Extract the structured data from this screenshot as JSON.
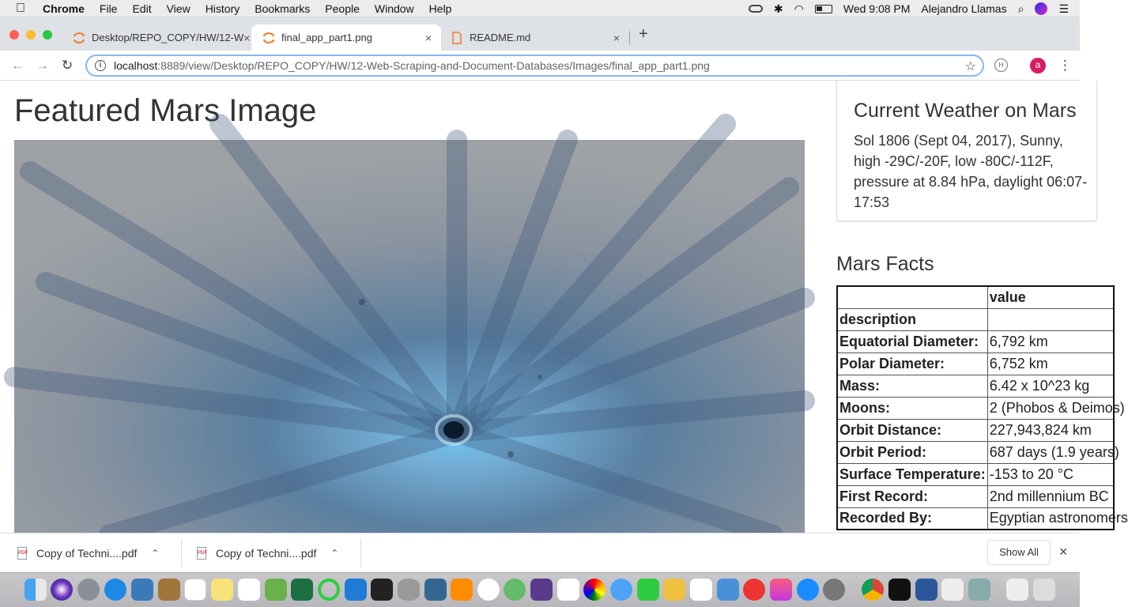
{
  "menubar": {
    "app_name": "Chrome",
    "items": [
      "File",
      "Edit",
      "View",
      "History",
      "Bookmarks",
      "People",
      "Window",
      "Help"
    ],
    "clock": "Wed 9:08 PM",
    "user": "Alejandro Llamas"
  },
  "tabs": [
    {
      "label": "Desktop/REPO_COPY/HW/12-W",
      "close": "×"
    },
    {
      "label": "final_app_part1.png",
      "close": "×"
    },
    {
      "label": "README.md",
      "close": "×"
    }
  ],
  "new_tab": "+",
  "toolbar": {
    "back": "←",
    "forward": "→",
    "reload": "↻",
    "url_host": "localhost",
    "url_path": ":8889/view/Desktop/REPO_COPY/HW/12-Web-Scraping-and-Document-Databases/Images/final_app_part1.png",
    "star": "☆",
    "profile_initial": "a",
    "menu": "⋮"
  },
  "page": {
    "featured_title": "Featured Mars Image",
    "weather_title": "Current Weather on Mars",
    "weather_text": "Sol 1806 (Sept 04, 2017), Sunny, high -29C/-20F, low -80C/-112F, pressure at 8.84 hPa, daylight 06:07-17:53",
    "facts_title": "Mars Facts",
    "facts_header": [
      "",
      "value"
    ],
    "facts_index_label": "description",
    "facts": [
      {
        "k": "Equatorial Diameter:",
        "v": "6,792 km"
      },
      {
        "k": "Polar Diameter:",
        "v": "6,752 km"
      },
      {
        "k": "Mass:",
        "v": "6.42 x 10^23 kg"
      },
      {
        "k": "Moons:",
        "v": "2 (Phobos & Deimos)"
      },
      {
        "k": "Orbit Distance:",
        "v": "227,943,824 km"
      },
      {
        "k": "Orbit Period:",
        "v": "687 days (1.9 years)"
      },
      {
        "k": "Surface Temperature:",
        "v": "-153 to 20 °C"
      },
      {
        "k": "First Record:",
        "v": "2nd millennium BC"
      },
      {
        "k": "Recorded By:",
        "v": "Egyptian astronomers"
      }
    ]
  },
  "downloads": [
    {
      "name": "Copy of Techni....pdf"
    },
    {
      "name": "Copy of Techni....pdf"
    }
  ],
  "show_all": "Show All",
  "shelf_close": "×",
  "colors": {
    "tab_bg": "#dee1e6",
    "focus": "#8ab4f8",
    "profile": "#d81b60"
  }
}
